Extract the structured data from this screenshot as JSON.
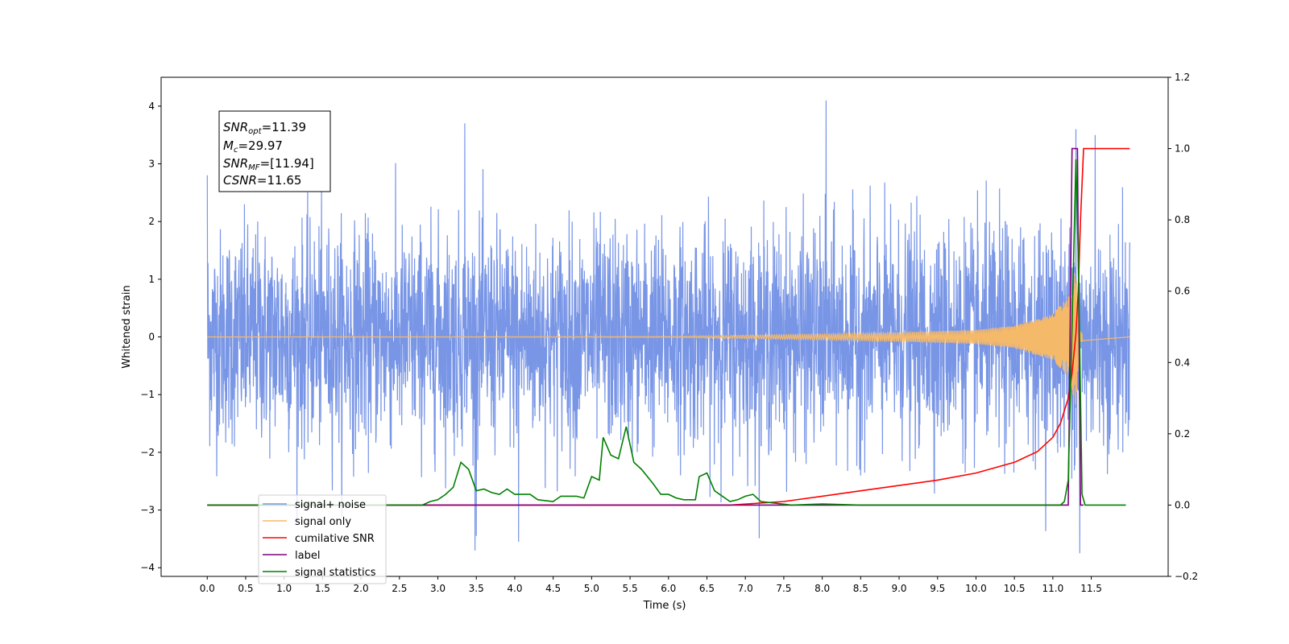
{
  "chart_data": {
    "type": "line",
    "xlabel": "Time (s)",
    "ylabel": "Whitened strain",
    "xlim": [
      -0.6,
      12.5
    ],
    "ylim": [
      -4.15,
      4.5
    ],
    "y2lim": [
      -0.2,
      1.2
    ],
    "x_ticks": [
      0.0,
      0.5,
      1.0,
      1.5,
      2.0,
      2.5,
      3.0,
      3.5,
      4.0,
      4.5,
      5.0,
      5.5,
      6.0,
      6.5,
      7.0,
      7.5,
      8.0,
      8.5,
      9.0,
      9.5,
      10.0,
      10.5,
      11.0,
      11.5
    ],
    "x_tick_labels": [
      "0.0",
      "0.5",
      "1.0",
      "1.5",
      "2.0",
      "2.5",
      "3.0",
      "3.5",
      "4.0",
      "4.5",
      "5.0",
      "5.5",
      "6.0",
      "6.5",
      "7.0",
      "7.5",
      "8.0",
      "8.5",
      "9.0",
      "9.5",
      "10.0",
      "10.5",
      "11.0",
      "11.5"
    ],
    "y_ticks": [
      4,
      3,
      2,
      1,
      0,
      -1,
      -2,
      -3,
      -4
    ],
    "y_tick_labels": [
      "4",
      "3",
      "2",
      "1",
      "0",
      "−1",
      "−2",
      "−3",
      "−4"
    ],
    "y2_ticks": [
      1.2,
      1.0,
      0.8,
      0.6,
      0.4,
      0.2,
      0.0,
      -0.2
    ],
    "y2_tick_labels": [
      "1.2",
      "1.0",
      "0.8",
      "0.6",
      "0.4",
      "0.2",
      "0.0",
      "−0.2"
    ],
    "grid": false,
    "legend_position": "lower-left",
    "annotation": {
      "snr_opt": "=11.39",
      "mc": "=29.97",
      "snr_mf": "=[11.94]",
      "csnr": "=11.65"
    },
    "series": [
      {
        "name": "signal+ noise",
        "axis": "left",
        "color": "#7895e6",
        "t_range": [
          0.0,
          12.0
        ],
        "envelope_sigma": 1.0,
        "notable_peaks": [
          [
            0.0,
            2.8
          ],
          [
            3.35,
            3.7
          ],
          [
            8.05,
            4.1
          ],
          [
            11.3,
            3.6
          ],
          [
            11.55,
            3.5
          ],
          [
            11.35,
            -3.75
          ],
          [
            4.05,
            -3.55
          ],
          [
            3.5,
            -3.45
          ]
        ]
      },
      {
        "name": "signal only",
        "axis": "left",
        "color": "#f5b96a",
        "t_range": [
          0.0,
          12.0
        ],
        "amplitude_points": [
          [
            0.0,
            0.0
          ],
          [
            6.0,
            0.01
          ],
          [
            7.0,
            0.03
          ],
          [
            8.0,
            0.05
          ],
          [
            9.0,
            0.08
          ],
          [
            10.0,
            0.12
          ],
          [
            10.5,
            0.2
          ],
          [
            11.0,
            0.4
          ],
          [
            11.2,
            0.7
          ],
          [
            11.3,
            1.2
          ],
          [
            11.35,
            0.1
          ],
          [
            12.0,
            0.0
          ]
        ]
      },
      {
        "name": "cumilative SNR",
        "axis": "right",
        "color": "#ff0000",
        "points": [
          [
            0.0,
            0.0
          ],
          [
            6.8,
            0.0
          ],
          [
            7.5,
            0.01
          ],
          [
            8.0,
            0.025
          ],
          [
            8.5,
            0.04
          ],
          [
            9.0,
            0.055
          ],
          [
            9.5,
            0.07
          ],
          [
            10.0,
            0.09
          ],
          [
            10.5,
            0.12
          ],
          [
            10.8,
            0.15
          ],
          [
            11.0,
            0.19
          ],
          [
            11.1,
            0.23
          ],
          [
            11.2,
            0.3
          ],
          [
            11.25,
            0.37
          ],
          [
            11.3,
            0.48
          ],
          [
            11.33,
            0.6
          ],
          [
            11.36,
            0.8
          ],
          [
            11.4,
            1.0
          ],
          [
            11.6,
            1.0
          ],
          [
            12.0,
            1.0
          ]
        ]
      },
      {
        "name": "label",
        "axis": "right",
        "color": "#7f007f",
        "points": [
          [
            0.0,
            0.0
          ],
          [
            11.2,
            0.0
          ],
          [
            11.25,
            1.0
          ],
          [
            11.32,
            1.0
          ],
          [
            11.36,
            0.0
          ],
          [
            11.4,
            0.0
          ]
        ]
      },
      {
        "name": "signal statistics",
        "axis": "right",
        "color": "#008000",
        "points": [
          [
            0.0,
            0.0
          ],
          [
            2.8,
            0.0
          ],
          [
            2.9,
            0.01
          ],
          [
            3.0,
            0.015
          ],
          [
            3.1,
            0.03
          ],
          [
            3.2,
            0.05
          ],
          [
            3.3,
            0.12
          ],
          [
            3.4,
            0.1
          ],
          [
            3.5,
            0.04
          ],
          [
            3.6,
            0.045
          ],
          [
            3.7,
            0.035
          ],
          [
            3.8,
            0.03
          ],
          [
            3.9,
            0.045
          ],
          [
            4.0,
            0.03
          ],
          [
            4.2,
            0.03
          ],
          [
            4.3,
            0.015
          ],
          [
            4.5,
            0.01
          ],
          [
            4.6,
            0.025
          ],
          [
            4.8,
            0.025
          ],
          [
            4.9,
            0.02
          ],
          [
            5.0,
            0.08
          ],
          [
            5.1,
            0.07
          ],
          [
            5.15,
            0.19
          ],
          [
            5.25,
            0.14
          ],
          [
            5.35,
            0.13
          ],
          [
            5.45,
            0.22
          ],
          [
            5.55,
            0.12
          ],
          [
            5.65,
            0.1
          ],
          [
            5.8,
            0.06
          ],
          [
            5.9,
            0.03
          ],
          [
            6.0,
            0.03
          ],
          [
            6.1,
            0.02
          ],
          [
            6.2,
            0.015
          ],
          [
            6.35,
            0.015
          ],
          [
            6.4,
            0.08
          ],
          [
            6.5,
            0.09
          ],
          [
            6.6,
            0.04
          ],
          [
            6.8,
            0.01
          ],
          [
            6.9,
            0.015
          ],
          [
            7.0,
            0.025
          ],
          [
            7.1,
            0.03
          ],
          [
            7.2,
            0.01
          ],
          [
            7.4,
            0.005
          ],
          [
            7.6,
            0.0
          ],
          [
            8.0,
            0.003
          ],
          [
            8.5,
            0.0
          ],
          [
            11.1,
            0.0
          ],
          [
            11.15,
            0.01
          ],
          [
            11.2,
            0.07
          ],
          [
            11.25,
            0.5
          ],
          [
            11.3,
            0.97
          ],
          [
            11.33,
            0.7
          ],
          [
            11.38,
            0.03
          ],
          [
            11.42,
            0.0
          ],
          [
            11.95,
            0.0
          ]
        ]
      }
    ]
  }
}
